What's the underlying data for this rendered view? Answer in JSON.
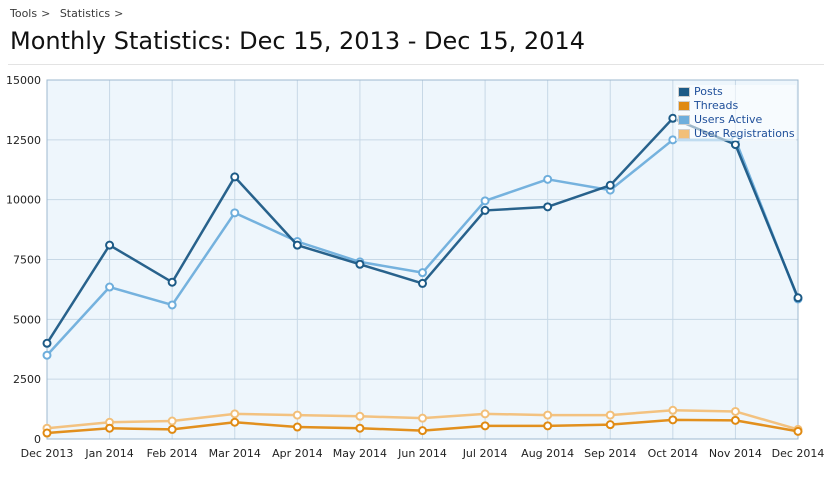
{
  "breadcrumb": {
    "items": [
      "Tools",
      "Statistics"
    ],
    "separator": ">"
  },
  "page": {
    "title": "Monthly Statistics: Dec 15, 2013 - Dec 15, 2014"
  },
  "colors": {
    "plot_background": "#eef6fc",
    "grid": "#c7d8e6",
    "axis_text": "#222222"
  },
  "legend": {
    "placement": "top-right",
    "entries": [
      {
        "label": "Posts",
        "color": "#1c5a86"
      },
      {
        "label": "Threads",
        "color": "#e08a12"
      },
      {
        "label": "Users Active",
        "color": "#6eaedc"
      },
      {
        "label": "User Registrations",
        "color": "#f2bf79"
      }
    ]
  },
  "chart_data": {
    "type": "line",
    "categories": [
      "Dec 2013",
      "Jan 2014",
      "Feb 2014",
      "Mar 2014",
      "Apr 2014",
      "May 2014",
      "Jun 2014",
      "Jul 2014",
      "Aug 2014",
      "Sep 2014",
      "Oct 2014",
      "Nov 2014",
      "Dec 2014"
    ],
    "ylim": [
      0,
      15000
    ],
    "yticks": [
      0,
      2500,
      5000,
      7500,
      10000,
      12500,
      15000
    ],
    "ytick_labels": [
      "0",
      "2500",
      "5000",
      "7500",
      "10000",
      "12500",
      "15000"
    ],
    "grid": true,
    "series": [
      {
        "name": "User Registrations",
        "color": "#f2bf79",
        "values": [
          450,
          700,
          750,
          1050,
          1000,
          950,
          870,
          1050,
          1000,
          1000,
          1200,
          1150,
          400
        ]
      },
      {
        "name": "Threads",
        "color": "#e08a12",
        "values": [
          250,
          450,
          400,
          700,
          500,
          450,
          350,
          550,
          550,
          600,
          800,
          780,
          320
        ]
      },
      {
        "name": "Users Active",
        "color": "#6eaedc",
        "values": [
          3500,
          6350,
          5600,
          9450,
          8250,
          7400,
          6950,
          9950,
          10850,
          10400,
          12500,
          12500,
          5850
        ]
      },
      {
        "name": "Posts",
        "color": "#1c5a86",
        "values": [
          4000,
          8100,
          6550,
          10950,
          8100,
          7300,
          6500,
          9550,
          9700,
          10600,
          13400,
          12300,
          5900
        ]
      }
    ]
  }
}
